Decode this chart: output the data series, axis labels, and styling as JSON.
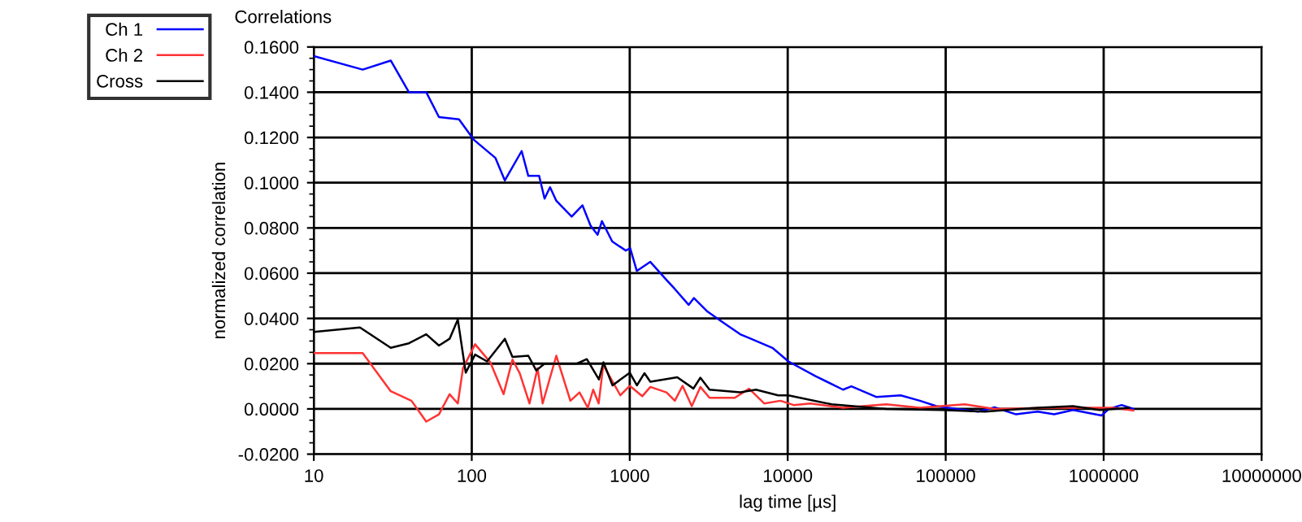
{
  "chart_data": {
    "type": "line",
    "title": "Correlations",
    "xlabel": "lag time [µs]",
    "ylabel": "normalized correlation",
    "log": "x",
    "grid": true,
    "legend": "top left",
    "marker": "none",
    "line_style": "solid",
    "xlim": [
      10,
      10000000
    ],
    "xticks": [
      10,
      100,
      1000,
      10000,
      100000,
      1000000,
      10000000
    ],
    "ylim": [
      -0.02,
      0.16
    ],
    "yticks": [
      {
        "value": -0.02,
        "label": "-0.0200"
      },
      {
        "value": 0,
        "label": "0.0000"
      },
      {
        "value": 0.02,
        "label": "0.0200"
      },
      {
        "value": 0.04,
        "label": "0.0400"
      },
      {
        "value": 0.06,
        "label": "0.0600"
      },
      {
        "value": 0.08,
        "label": "0.0800"
      },
      {
        "value": 0.1,
        "label": "0.1000"
      },
      {
        "value": 0.12,
        "label": "0.1200"
      },
      {
        "value": 0.14,
        "label": "0.1400"
      },
      {
        "value": 0.16,
        "label": "0.1600"
      }
    ],
    "series": [
      {
        "name": "Ch 1",
        "color": "#0000ff",
        "x": [
          10,
          20.4,
          30.7,
          40,
          51.5,
          62,
          83,
          103,
          141,
          162,
          207,
          228,
          267,
          289,
          313,
          343,
          429,
          502,
          565,
          626,
          667,
          775,
          944,
          1007,
          1108,
          1350,
          1710,
          1930,
          2360,
          2550,
          3110,
          3940,
          5000,
          5850,
          8000,
          10100,
          15000,
          22400,
          25300,
          36300,
          51900,
          68700,
          87300,
          117000,
          160000,
          204000,
          279000,
          383000,
          486000,
          640000,
          970000,
          1080000,
          1300000,
          1540000
        ],
        "values": [
          0.156,
          0.15,
          0.154,
          0.14,
          0.14,
          0.129,
          0.128,
          0.119,
          0.111,
          0.101,
          0.114,
          0.103,
          0.103,
          0.093,
          0.098,
          0.092,
          0.085,
          0.09,
          0.081,
          0.077,
          0.083,
          0.074,
          0.07,
          0.071,
          0.061,
          0.065,
          0.057,
          0.053,
          0.046,
          0.049,
          0.043,
          0.038,
          0.033,
          0.031,
          0.027,
          0.021,
          0.0145,
          0.0085,
          0.01,
          0.0053,
          0.006,
          0.0036,
          0.0012,
          0,
          -0.0012,
          0.0007,
          -0.0024,
          -0.0012,
          -0.0024,
          -0.0005,
          -0.0029,
          0,
          0.0017,
          0
        ]
      },
      {
        "name": "Ch 2",
        "color": "#ff3333",
        "x": [
          10,
          20.4,
          30.7,
          41.5,
          51.5,
          62,
          72.4,
          81.6,
          88,
          105,
          131,
          159,
          181,
          201,
          232,
          261,
          281,
          343,
          421,
          481,
          543,
          587,
          636,
          680,
          872,
          1000,
          1200,
          1350,
          1710,
          1930,
          2160,
          2470,
          2800,
          3200,
          4620,
          5700,
          7100,
          9000,
          10900,
          13900,
          22400,
          42000,
          68700,
          132000,
          204000,
          447000,
          1150000,
          1540000
        ],
        "values": [
          0.0247,
          0.0247,
          0.0078,
          0.0036,
          -0.0056,
          -0.0024,
          0.0065,
          0.0024,
          0.018,
          0.0286,
          0.0206,
          0.0065,
          0.0218,
          0.0158,
          0.0024,
          0.018,
          0.0024,
          0.0235,
          0.0036,
          0.0073,
          0.0005,
          0.0085,
          0.0024,
          0.0194,
          0.006,
          0.0102,
          0.0056,
          0.0097,
          0.0073,
          0.0036,
          0.0102,
          0.0012,
          0.0097,
          0.0049,
          0.0049,
          0.0089,
          0.0024,
          0.0036,
          0.0017,
          0.0024,
          0.0005,
          0.002,
          0.0005,
          0.002,
          0,
          0.0005,
          0.0005,
          -0.0007
        ]
      },
      {
        "name": "Cross",
        "color": "#000000",
        "x": [
          10,
          19.6,
          30.7,
          40,
          51.5,
          62,
          72.4,
          81.6,
          91.6,
          105,
          125,
          162,
          181,
          228,
          256,
          289,
          463,
          535,
          638,
          682,
          778,
          1000,
          1110,
          1240,
          1350,
          2000,
          2530,
          2800,
          3200,
          5000,
          6300,
          8700,
          10100,
          19000,
          42000,
          93000,
          177000,
          383000,
          640000,
          942000,
          1450000
        ],
        "values": [
          0.034,
          0.036,
          0.027,
          0.029,
          0.033,
          0.028,
          0.031,
          0.0395,
          0.016,
          0.024,
          0.021,
          0.031,
          0.023,
          0.0235,
          0.017,
          0.02,
          0.02,
          0.022,
          0.013,
          0.0206,
          0.0104,
          0.016,
          0.0104,
          0.0158,
          0.012,
          0.014,
          0.009,
          0.0138,
          0.0085,
          0.0073,
          0.0085,
          0.006,
          0.006,
          0.002,
          0,
          -0.0005,
          -0.0012,
          0.0005,
          0.0012,
          -0.0005,
          0.0005
        ]
      }
    ]
  }
}
